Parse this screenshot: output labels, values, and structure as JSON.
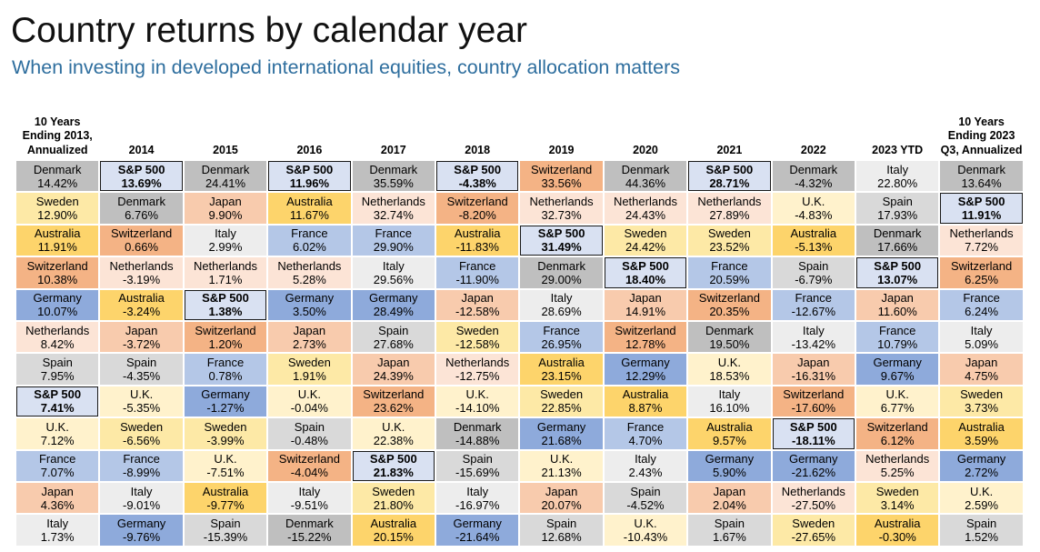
{
  "title": "Country returns by calendar year",
  "subtitle": "When investing in developed international equities, country allocation matters",
  "colors": {
    "Denmark": "#bfbfbf",
    "Sweden": "#fde9a6",
    "Australia": "#fdd46b",
    "Switzerland": "#f4b385",
    "Germany": "#8eaadb",
    "Netherlands": "#fce4d6",
    "Spain": "#d9d9d9",
    "S&P 500": "#d9e1f2",
    "U.K.": "#fff2cc",
    "France": "#b4c7e7",
    "Japan": "#f8cbad",
    "Italy": "#ededed"
  },
  "chart_data": {
    "type": "table",
    "highlight": "S&P 500",
    "columns": [
      {
        "header": "10 Years\nEnding 2013,\nAnnualized",
        "rows": [
          {
            "name": "Denmark",
            "value": "14.42%"
          },
          {
            "name": "Sweden",
            "value": "12.90%"
          },
          {
            "name": "Australia",
            "value": "11.91%"
          },
          {
            "name": "Switzerland",
            "value": "10.38%"
          },
          {
            "name": "Germany",
            "value": "10.07%"
          },
          {
            "name": "Netherlands",
            "value": "8.42%"
          },
          {
            "name": "Spain",
            "value": "7.95%"
          },
          {
            "name": "S&P 500",
            "value": "7.41%"
          },
          {
            "name": "U.K.",
            "value": "7.12%"
          },
          {
            "name": "France",
            "value": "7.07%"
          },
          {
            "name": "Japan",
            "value": "4.36%"
          },
          {
            "name": "Italy",
            "value": "1.73%"
          }
        ]
      },
      {
        "header": "2014",
        "rows": [
          {
            "name": "S&P 500",
            "value": "13.69%"
          },
          {
            "name": "Denmark",
            "value": "6.76%"
          },
          {
            "name": "Switzerland",
            "value": "0.66%"
          },
          {
            "name": "Netherlands",
            "value": "-3.19%"
          },
          {
            "name": "Australia",
            "value": "-3.24%"
          },
          {
            "name": "Japan",
            "value": "-3.72%"
          },
          {
            "name": "Spain",
            "value": "-4.35%"
          },
          {
            "name": "U.K.",
            "value": "-5.35%"
          },
          {
            "name": "Sweden",
            "value": "-6.56%"
          },
          {
            "name": "France",
            "value": "-8.99%"
          },
          {
            "name": "Italy",
            "value": "-9.01%"
          },
          {
            "name": "Germany",
            "value": "-9.76%"
          }
        ]
      },
      {
        "header": "2015",
        "rows": [
          {
            "name": "Denmark",
            "value": "24.41%"
          },
          {
            "name": "Japan",
            "value": "9.90%"
          },
          {
            "name": "Italy",
            "value": "2.99%"
          },
          {
            "name": "Netherlands",
            "value": "1.71%"
          },
          {
            "name": "S&P 500",
            "value": "1.38%"
          },
          {
            "name": "Switzerland",
            "value": "1.20%"
          },
          {
            "name": "France",
            "value": "0.78%"
          },
          {
            "name": "Germany",
            "value": "-1.27%"
          },
          {
            "name": "Sweden",
            "value": "-3.99%"
          },
          {
            "name": "U.K.",
            "value": "-7.51%"
          },
          {
            "name": "Australia",
            "value": "-9.77%"
          },
          {
            "name": "Spain",
            "value": "-15.39%"
          }
        ]
      },
      {
        "header": "2016",
        "rows": [
          {
            "name": "S&P 500",
            "value": "11.96%"
          },
          {
            "name": "Australia",
            "value": "11.67%"
          },
          {
            "name": "France",
            "value": "6.02%"
          },
          {
            "name": "Netherlands",
            "value": "5.28%"
          },
          {
            "name": "Germany",
            "value": "3.50%"
          },
          {
            "name": "Japan",
            "value": "2.73%"
          },
          {
            "name": "Sweden",
            "value": "1.91%"
          },
          {
            "name": "U.K.",
            "value": "-0.04%"
          },
          {
            "name": "Spain",
            "value": "-0.48%"
          },
          {
            "name": "Switzerland",
            "value": "-4.04%"
          },
          {
            "name": "Italy",
            "value": "-9.51%"
          },
          {
            "name": "Denmark",
            "value": "-15.22%"
          }
        ]
      },
      {
        "header": "2017",
        "rows": [
          {
            "name": "Denmark",
            "value": "35.59%"
          },
          {
            "name": "Netherlands",
            "value": "32.74%"
          },
          {
            "name": "France",
            "value": "29.90%"
          },
          {
            "name": "Italy",
            "value": "29.56%"
          },
          {
            "name": "Germany",
            "value": "28.49%"
          },
          {
            "name": "Spain",
            "value": "27.68%"
          },
          {
            "name": "Japan",
            "value": "24.39%"
          },
          {
            "name": "Switzerland",
            "value": "23.62%"
          },
          {
            "name": "U.K.",
            "value": "22.38%"
          },
          {
            "name": "S&P 500",
            "value": "21.83%"
          },
          {
            "name": "Sweden",
            "value": "21.80%"
          },
          {
            "name": "Australia",
            "value": "20.15%"
          }
        ]
      },
      {
        "header": "2018",
        "rows": [
          {
            "name": "S&P 500",
            "value": "-4.38%"
          },
          {
            "name": "Switzerland",
            "value": "-8.20%"
          },
          {
            "name": "Australia",
            "value": "-11.83%"
          },
          {
            "name": "France",
            "value": "-11.90%"
          },
          {
            "name": "Japan",
            "value": "-12.58%"
          },
          {
            "name": "Sweden",
            "value": "-12.58%"
          },
          {
            "name": "Netherlands",
            "value": "-12.75%"
          },
          {
            "name": "U.K.",
            "value": "-14.10%"
          },
          {
            "name": "Denmark",
            "value": "-14.88%"
          },
          {
            "name": "Spain",
            "value": "-15.69%"
          },
          {
            "name": "Italy",
            "value": "-16.97%"
          },
          {
            "name": "Germany",
            "value": "-21.64%"
          }
        ]
      },
      {
        "header": "2019",
        "rows": [
          {
            "name": "Switzerland",
            "value": "33.56%"
          },
          {
            "name": "Netherlands",
            "value": "32.73%"
          },
          {
            "name": "S&P 500",
            "value": "31.49%"
          },
          {
            "name": "Denmark",
            "value": "29.00%"
          },
          {
            "name": "Italy",
            "value": "28.69%"
          },
          {
            "name": "France",
            "value": "26.95%"
          },
          {
            "name": "Australia",
            "value": "23.15%"
          },
          {
            "name": "Sweden",
            "value": "22.85%"
          },
          {
            "name": "Germany",
            "value": "21.68%"
          },
          {
            "name": "U.K.",
            "value": "21.13%"
          },
          {
            "name": "Japan",
            "value": "20.07%"
          },
          {
            "name": "Spain",
            "value": "12.68%"
          }
        ]
      },
      {
        "header": "2020",
        "rows": [
          {
            "name": "Denmark",
            "value": "44.36%"
          },
          {
            "name": "Netherlands",
            "value": "24.43%"
          },
          {
            "name": "Sweden",
            "value": "24.42%"
          },
          {
            "name": "S&P 500",
            "value": "18.40%"
          },
          {
            "name": "Japan",
            "value": "14.91%"
          },
          {
            "name": "Switzerland",
            "value": "12.78%"
          },
          {
            "name": "Germany",
            "value": "12.29%"
          },
          {
            "name": "Australia",
            "value": "8.87%"
          },
          {
            "name": "France",
            "value": "4.70%"
          },
          {
            "name": "Italy",
            "value": "2.43%"
          },
          {
            "name": "Spain",
            "value": "-4.52%"
          },
          {
            "name": "U.K.",
            "value": "-10.43%"
          }
        ]
      },
      {
        "header": "2021",
        "rows": [
          {
            "name": "S&P 500",
            "value": "28.71%"
          },
          {
            "name": "Netherlands",
            "value": "27.89%"
          },
          {
            "name": "Sweden",
            "value": "23.52%"
          },
          {
            "name": "France",
            "value": "20.59%"
          },
          {
            "name": "Switzerland",
            "value": "20.35%"
          },
          {
            "name": "Denmark",
            "value": "19.50%"
          },
          {
            "name": "U.K.",
            "value": "18.53%"
          },
          {
            "name": "Italy",
            "value": "16.10%"
          },
          {
            "name": "Australia",
            "value": "9.57%"
          },
          {
            "name": "Germany",
            "value": "5.90%"
          },
          {
            "name": "Japan",
            "value": "2.04%"
          },
          {
            "name": "Spain",
            "value": "1.67%"
          }
        ]
      },
      {
        "header": "2022",
        "rows": [
          {
            "name": "Denmark",
            "value": "-4.32%"
          },
          {
            "name": "U.K.",
            "value": "-4.83%"
          },
          {
            "name": "Australia",
            "value": "-5.13%"
          },
          {
            "name": "Spain",
            "value": "-6.79%"
          },
          {
            "name": "France",
            "value": "-12.67%"
          },
          {
            "name": "Italy",
            "value": "-13.42%"
          },
          {
            "name": "Japan",
            "value": "-16.31%"
          },
          {
            "name": "Switzerland",
            "value": "-17.60%"
          },
          {
            "name": "S&P 500",
            "value": "-18.11%"
          },
          {
            "name": "Germany",
            "value": "-21.62%"
          },
          {
            "name": "Netherlands",
            "value": "-27.50%"
          },
          {
            "name": "Sweden",
            "value": "-27.65%"
          }
        ]
      },
      {
        "header": "2023 YTD",
        "rows": [
          {
            "name": "Italy",
            "value": "22.80%"
          },
          {
            "name": "Spain",
            "value": "17.93%"
          },
          {
            "name": "Denmark",
            "value": "17.66%"
          },
          {
            "name": "S&P 500",
            "value": "13.07%"
          },
          {
            "name": "Japan",
            "value": "11.60%"
          },
          {
            "name": "France",
            "value": "10.79%"
          },
          {
            "name": "Germany",
            "value": "9.67%"
          },
          {
            "name": "U.K.",
            "value": "6.77%"
          },
          {
            "name": "Switzerland",
            "value": "6.12%"
          },
          {
            "name": "Netherlands",
            "value": "5.25%"
          },
          {
            "name": "Sweden",
            "value": "3.14%"
          },
          {
            "name": "Australia",
            "value": "-0.30%"
          }
        ]
      },
      {
        "header": "10 Years\nEnding 2023\nQ3, Annualized",
        "rows": [
          {
            "name": "Denmark",
            "value": "13.64%"
          },
          {
            "name": "S&P 500",
            "value": "11.91%"
          },
          {
            "name": "Netherlands",
            "value": "7.72%"
          },
          {
            "name": "Switzerland",
            "value": "6.25%"
          },
          {
            "name": "France",
            "value": "6.24%"
          },
          {
            "name": "Italy",
            "value": "5.09%"
          },
          {
            "name": "Japan",
            "value": "4.75%"
          },
          {
            "name": "Sweden",
            "value": "3.73%"
          },
          {
            "name": "Australia",
            "value": "3.59%"
          },
          {
            "name": "Germany",
            "value": "2.72%"
          },
          {
            "name": "U.K.",
            "value": "2.59%"
          },
          {
            "name": "Spain",
            "value": "1.52%"
          }
        ]
      }
    ]
  }
}
